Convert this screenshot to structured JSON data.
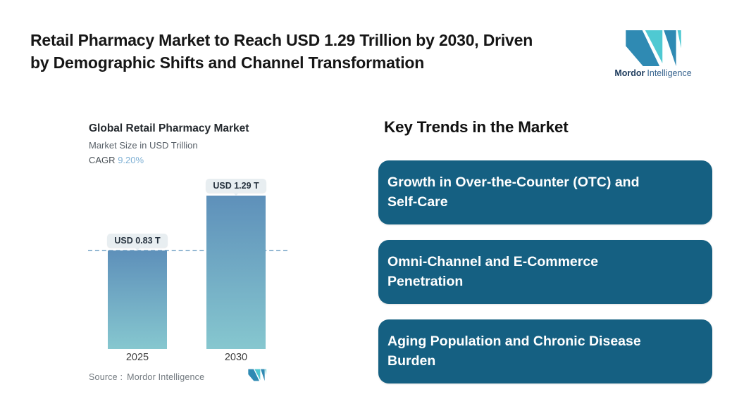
{
  "header": {
    "title_lines": [
      "Retail Pharmacy Market to Reach USD 1.29 Trillion by 2030, Driven",
      "by Demographic Shifts and Channel Transformation"
    ]
  },
  "brand": {
    "name_primary": "Mordor",
    "name_secondary": "Intelligence"
  },
  "chart_data": {
    "type": "bar",
    "title": "Global Retail Pharmacy Market",
    "subtitle": "Market Size in USD Trillion",
    "cagr_label": "CAGR",
    "cagr_value": "9.20%",
    "categories": [
      "2025",
      "2030"
    ],
    "values": [
      0.83,
      1.29
    ],
    "unit": "USD Trillion",
    "value_labels": [
      "USD 0.83 T",
      "USD 1.29 T"
    ],
    "ylim": [
      0,
      1.29
    ],
    "reference_value": 0.83,
    "reference_line_style": "dashed",
    "grid": false,
    "legend": false,
    "source_label": "Source :",
    "source_value": "Mordor Intelligence",
    "colors": {
      "bar_gradient_top": "#5e90ba",
      "bar_gradient_bottom": "#86c7cf",
      "reference_line": "#94b8d3",
      "value_pill_bg": "#e8eef1",
      "cagr_value": "#7fb0d4"
    }
  },
  "trends": {
    "heading": "Key Trends in the Market",
    "box_color": "#156082",
    "items": [
      {
        "lines": [
          "Growth in Over-the-Counter (OTC) and",
          "Self-Care"
        ]
      },
      {
        "lines": [
          "Omni-Channel and E-Commerce",
          "Penetration"
        ]
      },
      {
        "lines": [
          "Aging Population and Chronic Disease",
          "Burden"
        ]
      }
    ]
  }
}
